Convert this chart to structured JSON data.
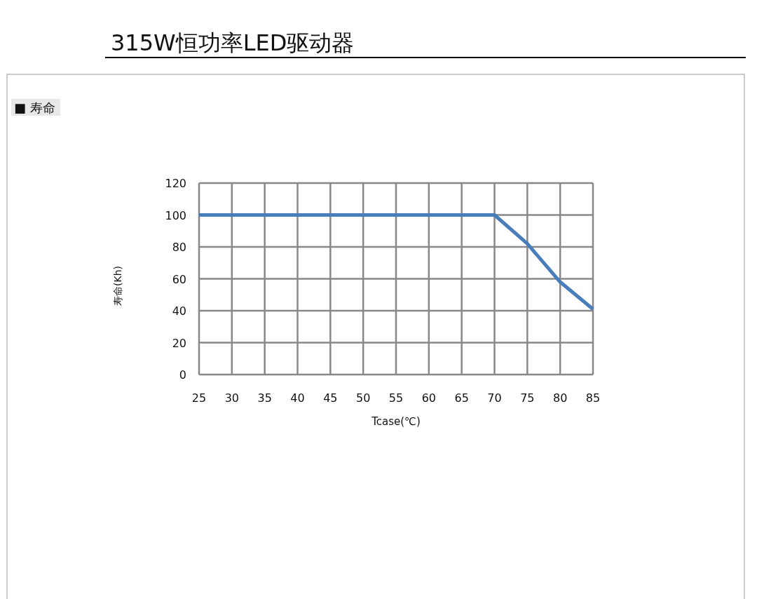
{
  "chart_data": {
    "type": "line",
    "title": "315W恒功率LED驱动器",
    "subtitle": "■ 寿命",
    "xlabel": "Tcase(℃)",
    "ylabel": "寿命(Kh)",
    "x": [
      25,
      30,
      35,
      40,
      45,
      50,
      55,
      60,
      65,
      70,
      75,
      80,
      85
    ],
    "series": [
      {
        "color": "#4a7ebb",
        "values": [
          100,
          100,
          100,
          100,
          100,
          100,
          100,
          100,
          100,
          100,
          82,
          58,
          41
        ]
      }
    ],
    "xlim": [
      25,
      85
    ],
    "xticks": [
      25,
      30,
      35,
      40,
      45,
      50,
      55,
      60,
      65,
      70,
      75,
      80,
      85
    ],
    "ylim": [
      0,
      120
    ],
    "yticks": [
      0,
      20,
      40,
      60,
      80,
      100,
      120
    ],
    "grid": true,
    "marker": "none",
    "line_style": "solid"
  }
}
